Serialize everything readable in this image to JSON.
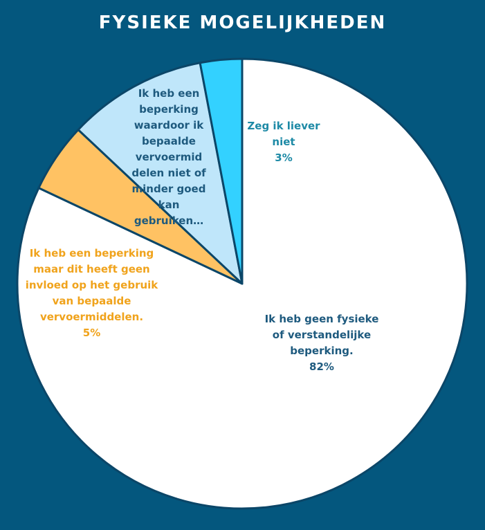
{
  "chart_data": {
    "type": "pie",
    "title": "FYSIEKE MOGELIJKHEDEN",
    "slices": [
      {
        "label": "Ik heb geen fysieke of verstandelijke beperking.",
        "value": 82,
        "value_label": "82%",
        "color": "#ffffff"
      },
      {
        "label": "Ik heb een beperking maar dit heeft geen invloed op het gebruik van bepaalde vervoermiddelen.",
        "value": 5,
        "value_label": "5%",
        "color": "#ffc263"
      },
      {
        "label": "Ik heb een beperking waardoor ik bepaalde vervoermid delen niet of minder goed kan gebruiken…",
        "value": 10,
        "value_label": "",
        "color": "#bfe6fa"
      },
      {
        "label": "Zeg ik liever niet",
        "value": 3,
        "value_label": "3%",
        "color": "#33d1ff"
      }
    ]
  }
}
